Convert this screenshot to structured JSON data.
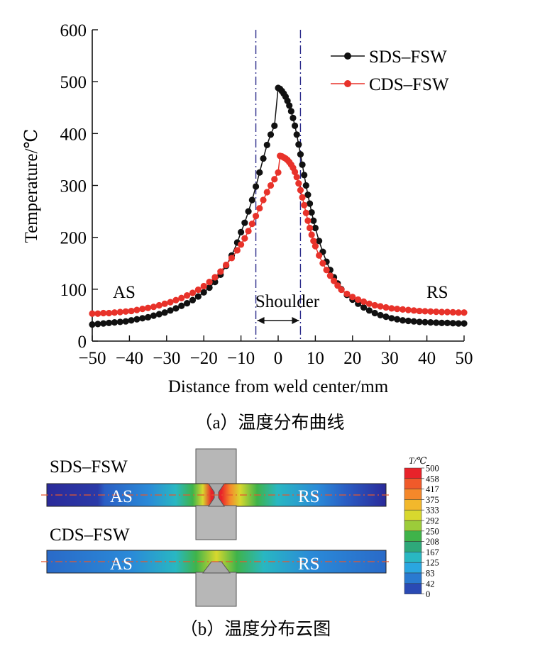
{
  "chart_data": {
    "type": "line",
    "xlabel": "Distance from weld center/mm",
    "ylabel": "Temperature/℃",
    "xlim": [
      -50,
      50
    ],
    "ylim": [
      0,
      600
    ],
    "x_ticks": [
      -50,
      -40,
      -30,
      -20,
      -10,
      0,
      10,
      20,
      30,
      40,
      50
    ],
    "y_ticks": [
      0,
      100,
      200,
      300,
      400,
      500,
      600
    ],
    "grid": false,
    "legend_position": "top-right",
    "series": [
      {
        "name": "SDS–FSW",
        "color": "#111111",
        "x": [
          -50,
          -48.5,
          -47,
          -45.5,
          -44,
          -42.5,
          -41,
          -39.5,
          -38,
          -36.5,
          -35,
          -33.5,
          -32,
          -30.5,
          -29,
          -27.5,
          -26,
          -24.5,
          -23,
          -21.5,
          -20,
          -18.5,
          -17,
          -15.5,
          -14,
          -12.5,
          -11,
          -10,
          -9,
          -8,
          -7,
          -6,
          -5,
          -4,
          -3,
          -2,
          -1,
          0,
          0.5,
          1,
          1.5,
          2,
          2.5,
          3,
          3.5,
          4,
          4.5,
          5,
          5.5,
          6,
          6.5,
          7,
          7.5,
          8,
          8.5,
          9,
          9.5,
          10,
          11,
          12,
          13,
          14,
          15,
          16,
          17,
          18.5,
          20,
          21.5,
          23,
          24.5,
          26,
          27.5,
          29,
          30.5,
          32,
          33.5,
          35,
          36.5,
          38,
          39.5,
          41,
          42.5,
          44,
          45.5,
          47,
          48.5,
          50
        ],
        "y": [
          32,
          33,
          34,
          35,
          36,
          37,
          38,
          40,
          42,
          44,
          46,
          49,
          52,
          55,
          59,
          63,
          68,
          73,
          79,
          86,
          94,
          103,
          114,
          128,
          145,
          165,
          190,
          210,
          228,
          250,
          272,
          298,
          325,
          352,
          378,
          398,
          415,
          488,
          486,
          482,
          477,
          471,
          463,
          454,
          443,
          430,
          415,
          398,
          379,
          360,
          340,
          320,
          300,
          282,
          265,
          248,
          232,
          218,
          193,
          172,
          153,
          137,
          123,
          111,
          100,
          89,
          80,
          72,
          65,
          59,
          54,
          50,
          47,
          44,
          42,
          40,
          39,
          38,
          37,
          36.5,
          36,
          35.5,
          35,
          35,
          34.5,
          34,
          34
        ]
      },
      {
        "name": "CDS–FSW",
        "color": "#e8322a",
        "x": [
          -50,
          -48.5,
          -47,
          -45.5,
          -44,
          -42.5,
          -41,
          -39.5,
          -38,
          -36.5,
          -35,
          -33.5,
          -32,
          -30.5,
          -29,
          -27.5,
          -26,
          -24.5,
          -23,
          -21.5,
          -20,
          -18.5,
          -17,
          -15.5,
          -14,
          -12.5,
          -11,
          -10,
          -9,
          -8,
          -7,
          -6,
          -5,
          -4,
          -3,
          -2,
          -1,
          0,
          0.5,
          1,
          1.5,
          2,
          2.5,
          3,
          3.5,
          4,
          4.5,
          5,
          5.5,
          6,
          6.5,
          7,
          7.5,
          8,
          8.5,
          9,
          9.5,
          10,
          11,
          12,
          13,
          14,
          15,
          16,
          17,
          18.5,
          20,
          21.5,
          23,
          24.5,
          26,
          27.5,
          29,
          30.5,
          32,
          33.5,
          35,
          36.5,
          38,
          39.5,
          41,
          42.5,
          44,
          45.5,
          47,
          48.5,
          50
        ],
        "y": [
          53,
          53,
          54,
          54,
          55,
          56,
          57,
          58,
          60,
          62,
          64,
          66,
          69,
          72,
          75,
          79,
          83,
          88,
          93,
          99,
          106,
          114,
          123,
          134,
          147,
          160,
          175,
          186,
          198,
          212,
          226,
          241,
          256,
          272,
          287,
          300,
          312,
          325,
          357,
          356,
          354,
          352,
          349,
          345,
          340,
          334,
          326,
          316,
          304,
          291,
          277,
          262,
          247,
          232,
          218,
          205,
          193,
          183,
          165,
          150,
          137,
          126,
          116,
          107,
          99,
          91,
          85,
          80,
          76,
          72,
          69,
          67,
          65,
          63,
          62,
          61,
          60,
          59,
          58,
          57.5,
          57,
          56.5,
          56,
          56,
          55.5,
          55,
          55
        ]
      }
    ],
    "annotations": {
      "left_side": "AS",
      "right_side": "RS",
      "shoulder_label": "Shoulder",
      "shoulder_bounds": [
        -6,
        6
      ]
    },
    "caption": "（a）温度分布曲线"
  },
  "contour": {
    "rows": [
      {
        "label": "SDS–FSW",
        "as_label": "AS",
        "rs_label": "RS"
      },
      {
        "label": "CDS–FSW",
        "as_label": "AS",
        "rs_label": "RS"
      }
    ],
    "colorbar_title": "T/℃",
    "colorbar_values": [
      "500",
      "458",
      "417",
      "375",
      "333",
      "292",
      "250",
      "208",
      "167",
      "125",
      "83",
      "42",
      "0"
    ],
    "colorbar_colors": [
      "#e8232a",
      "#f05a2a",
      "#f5882a",
      "#f2b82c",
      "#d8d82e",
      "#9ccc3a",
      "#3fb34a",
      "#2ea87a",
      "#29b7c2",
      "#2aa6e0",
      "#2a7ad0",
      "#2a4ab4",
      "#2a2a9a"
    ],
    "caption": "（b）温度分布云图"
  }
}
